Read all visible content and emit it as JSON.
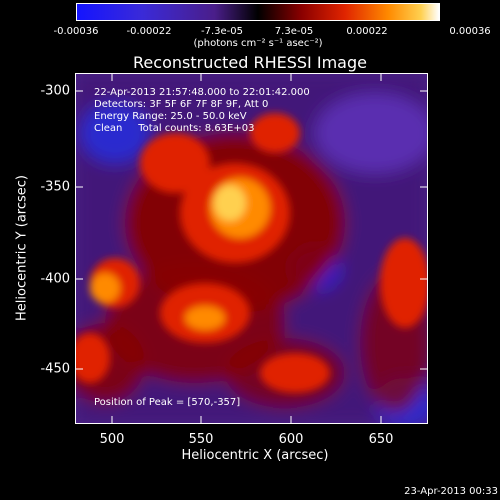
{
  "colorbar": {
    "ticks": [
      "-0.00036",
      "-0.00022",
      "-7.3e-05",
      "7.3e-05",
      "0.00022",
      "0.00036"
    ],
    "units": "(photons cm⁻² s⁻¹ asec⁻²)"
  },
  "title": "Reconstructed RHESSI Image",
  "annotations": {
    "time_range": "22-Apr-2013 21:57:48.000 to 22:01:42.000",
    "detectors": "Detectors: 3F 5F 6F 7F 8F 9F, Att 0",
    "energy": "Energy Range: 25.0 - 50.0 keV",
    "clean": "Clean     Total counts: 8.63E+03",
    "peak": "Position of Peak = [570,-357]"
  },
  "axes": {
    "xlabel": "Heliocentric X (arcsec)",
    "ylabel": "Heliocentric Y (arcsec)",
    "xticks": [
      "500",
      "550",
      "600",
      "650"
    ],
    "yticks": [
      "-300",
      "-350",
      "-400",
      "-450"
    ]
  },
  "footer": {
    "timestamp": "23-Apr-2013 00:33"
  }
}
